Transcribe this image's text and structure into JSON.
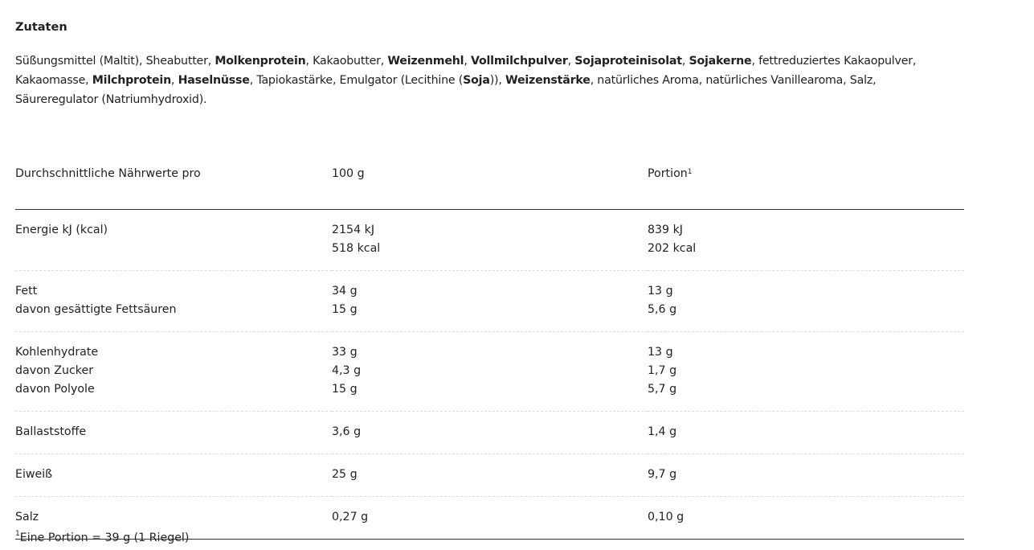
{
  "ingredients": {
    "title": "Zutaten",
    "lines": [
      [
        {
          "t": "Süßungsmittel (Maltit), Sheabutter, ",
          "b": false
        },
        {
          "t": "Molkenprotein",
          "b": true
        },
        {
          "t": ", Kakaobutter, ",
          "b": false
        },
        {
          "t": "Weizenmehl",
          "b": true
        },
        {
          "t": ", ",
          "b": false
        },
        {
          "t": "Vollmilchpulver",
          "b": true
        },
        {
          "t": ", ",
          "b": false
        },
        {
          "t": "Sojaproteinisolat",
          "b": true
        },
        {
          "t": ", ",
          "b": false
        },
        {
          "t": "Sojakerne",
          "b": true
        },
        {
          "t": ", fettreduziertes Kakaopulver,",
          "b": false
        }
      ],
      [
        {
          "t": "Kakaomasse, ",
          "b": false
        },
        {
          "t": "Milchprotein",
          "b": true
        },
        {
          "t": ", ",
          "b": false
        },
        {
          "t": "Haselnüsse",
          "b": true
        },
        {
          "t": ", Tapiokastärke, Emulgator (Lecithine (",
          "b": false
        },
        {
          "t": "Soja",
          "b": true
        },
        {
          "t": ")), ",
          "b": false
        },
        {
          "t": "Weizenstärke",
          "b": true
        },
        {
          "t": ", natürliches Aroma, natürliches Vanillearoma, Salz,",
          "b": false
        }
      ],
      [
        {
          "t": "Säureregulator (Natriumhydroxid).",
          "b": false
        }
      ]
    ]
  },
  "nutrition": {
    "headers": [
      "Durchschnittliche Nährwerte pro",
      "100 g",
      "Portion"
    ],
    "portion_sup": "1",
    "rows": [
      {
        "label": [
          "Energie kJ (kcal)"
        ],
        "per100": [
          "2154 kJ",
          "518 kcal"
        ],
        "portion": [
          "839 kJ",
          "202 kcal"
        ]
      },
      {
        "label": [
          "Fett",
          "davon gesättigte Fettsäuren"
        ],
        "per100": [
          "34 g",
          "15 g"
        ],
        "portion": [
          "13 g",
          "5,6 g"
        ]
      },
      {
        "label": [
          "Kohlenhydrate",
          "davon Zucker",
          "davon Polyole"
        ],
        "per100": [
          "33 g",
          "4,3 g",
          "15 g"
        ],
        "portion": [
          "13 g",
          "1,7 g",
          "5,7 g"
        ]
      },
      {
        "label": [
          "Ballaststoffe"
        ],
        "per100": [
          "3,6 g"
        ],
        "portion": [
          "1,4 g"
        ]
      },
      {
        "label": [
          "Eiweiß"
        ],
        "per100": [
          "25 g"
        ],
        "portion": [
          "9,7 g"
        ]
      },
      {
        "label": [
          "Salz"
        ],
        "per100": [
          "0,27 g"
        ],
        "portion": [
          "0,10 g"
        ]
      }
    ],
    "footnote_sup": "1",
    "footnote": "Eine Portion = 39 g (1 Riegel)"
  }
}
